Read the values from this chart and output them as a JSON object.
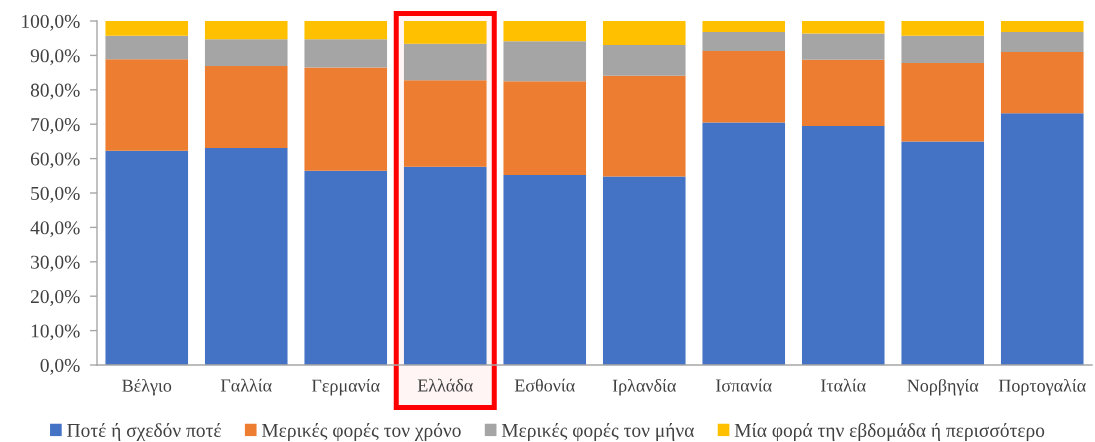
{
  "chart_data": {
    "type": "bar",
    "stacked": true,
    "categories": [
      "Βέλγιο",
      "Γαλλία",
      "Γερμανία",
      "Ελλάδα",
      "Εσθονία",
      "Ιρλανδία",
      "Ισπανία",
      "Ιταλία",
      "Νορβηγία",
      "Πορτογαλία"
    ],
    "series": [
      {
        "name": "Ποτέ ή σχεδόν ποτέ",
        "color": "#4472c4",
        "values": [
          62.3,
          63.1,
          56.5,
          57.6,
          55.2,
          54.8,
          70.5,
          69.5,
          65.0,
          73.2
        ]
      },
      {
        "name": "Μερικές φορές τον χρόνο",
        "color": "#ed7d31",
        "values": [
          26.6,
          23.8,
          30.0,
          25.2,
          27.3,
          29.3,
          20.8,
          19.2,
          22.8,
          17.8
        ]
      },
      {
        "name": "Μερικές φορές τον μήνα",
        "color": "#a5a5a5",
        "values": [
          6.8,
          7.8,
          8.2,
          10.6,
          11.6,
          8.9,
          5.5,
          7.7,
          7.9,
          5.8
        ]
      },
      {
        "name": "Μία φορά την εβδομάδα ή περισσότερο",
        "color": "#ffc000",
        "values": [
          4.3,
          5.3,
          5.3,
          6.6,
          5.9,
          7.0,
          3.2,
          3.6,
          4.3,
          3.2
        ]
      }
    ],
    "ylim": [
      0,
      100
    ],
    "yticks": [
      {
        "value": 0,
        "label": "0,0%"
      },
      {
        "value": 10,
        "label": "10,0%"
      },
      {
        "value": 20,
        "label": "20,0%"
      },
      {
        "value": 30,
        "label": "30,0%"
      },
      {
        "value": 40,
        "label": "40,0%"
      },
      {
        "value": 50,
        "label": "50,0%"
      },
      {
        "value": 60,
        "label": "60,0%"
      },
      {
        "value": 70,
        "label": "70,0%"
      },
      {
        "value": 80,
        "label": "80,0%"
      },
      {
        "value": 90,
        "label": "90,0%"
      },
      {
        "value": 100,
        "label": "100,0%"
      }
    ],
    "bands": [
      {
        "axis": "x",
        "from": "Ελλάδα",
        "to": "Ελλάδα",
        "color": "#ff0000"
      }
    ],
    "legend": "bottom"
  }
}
